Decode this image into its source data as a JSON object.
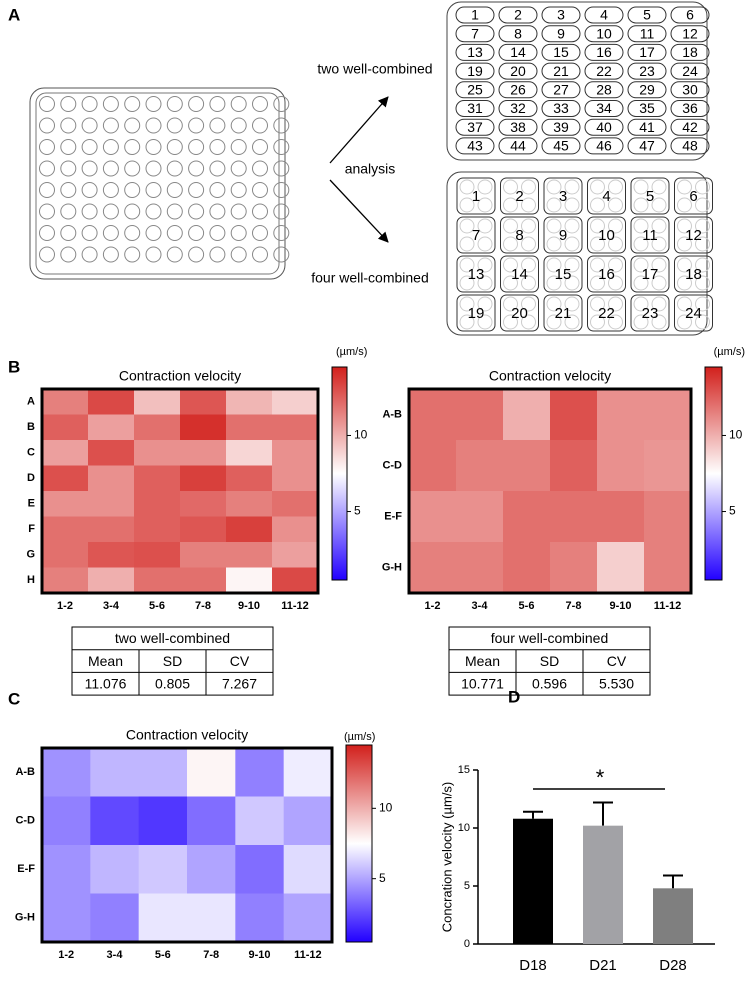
{
  "panel_labels": [
    "A",
    "B",
    "C",
    "D"
  ],
  "diagram": {
    "two_well_label": "two well-combined",
    "analysis_label": "analysis",
    "four_well_label": "four well-combined",
    "two_well_plate": [
      1,
      2,
      3,
      4,
      5,
      6,
      7,
      8,
      9,
      10,
      11,
      12,
      13,
      14,
      15,
      16,
      17,
      18,
      19,
      20,
      21,
      22,
      23,
      24,
      25,
      26,
      27,
      28,
      29,
      30,
      31,
      32,
      33,
      34,
      35,
      36,
      37,
      38,
      39,
      40,
      41,
      42,
      43,
      44,
      45,
      46,
      47,
      48
    ],
    "four_well_plate": [
      1,
      2,
      3,
      4,
      5,
      6,
      7,
      8,
      9,
      10,
      11,
      12,
      13,
      14,
      15,
      16,
      17,
      18,
      19,
      20,
      21,
      22,
      23,
      24
    ]
  },
  "chart_data": [
    {
      "type": "heatmap",
      "title": "Contraction velocity",
      "categories": [
        "1-2",
        "3-4",
        "5-6",
        "7-8",
        "9-10",
        "11-12"
      ],
      "rows": [
        "A",
        "B",
        "C",
        "D",
        "E",
        "F",
        "G",
        "H"
      ],
      "values": [
        [
          11.5,
          13.2,
          9.5,
          12.8,
          9.8,
          9.0
        ],
        [
          12.5,
          10.5,
          12.0,
          14.0,
          12.0,
          12.0
        ],
        [
          10.5,
          13.0,
          11.0,
          11.0,
          8.8,
          11.0
        ],
        [
          13.0,
          11.0,
          12.5,
          13.5,
          12.5,
          11.0
        ],
        [
          11.0,
          11.0,
          12.5,
          12.2,
          11.5,
          12.0
        ],
        [
          12.0,
          12.0,
          12.5,
          12.8,
          13.5,
          11.0
        ],
        [
          12.0,
          12.8,
          13.0,
          11.5,
          11.5,
          10.5
        ],
        [
          11.5,
          10.0,
          12.0,
          12.0,
          7.8,
          13.2
        ]
      ],
      "colorbar": {
        "label": "(µm/s)",
        "lim": [
          0.5,
          14.5
        ],
        "ticks": [
          5,
          10
        ],
        "colors": [
          "#2200ff",
          "#ffffff",
          "#d2201c"
        ]
      }
    },
    {
      "type": "heatmap",
      "title": "Contraction velocity",
      "categories": [
        "1-2",
        "3-4",
        "5-6",
        "7-8",
        "9-10",
        "11-12"
      ],
      "rows": [
        "A-B",
        "C-D",
        "E-F",
        "G-H"
      ],
      "values": [
        [
          12.0,
          12.0,
          10.0,
          13.0,
          11.0,
          11.0
        ],
        [
          12.0,
          11.5,
          11.5,
          12.5,
          11.0,
          10.8
        ],
        [
          11.0,
          11.0,
          12.0,
          12.0,
          12.0,
          11.5
        ],
        [
          11.5,
          11.5,
          12.0,
          11.5,
          9.0,
          11.5
        ]
      ],
      "colorbar": {
        "label": "(µm/s)",
        "lim": [
          0.5,
          14.5
        ],
        "ticks": [
          5,
          10
        ],
        "colors": [
          "#2200ff",
          "#ffffff",
          "#d2201c"
        ]
      }
    },
    {
      "type": "heatmap",
      "title": "Contraction velocity",
      "categories": [
        "1-2",
        "3-4",
        "5-6",
        "7-8",
        "9-10",
        "11-12"
      ],
      "rows": [
        "A-B",
        "C-D",
        "E-F",
        "G-H"
      ],
      "values": [
        [
          4.5,
          5.5,
          5.5,
          7.8,
          4.0,
          7.0
        ],
        [
          4.0,
          2.5,
          2.0,
          3.5,
          6.0,
          5.0
        ],
        [
          4.5,
          5.5,
          6.0,
          5.0,
          3.5,
          6.5
        ],
        [
          4.5,
          4.0,
          6.8,
          6.8,
          4.0,
          5.0
        ]
      ],
      "colorbar": {
        "label": "(µm/s)",
        "lim": [
          0.5,
          14.5
        ],
        "ticks": [
          5,
          10
        ],
        "colors": [
          "#2200ff",
          "#ffffff",
          "#d2201c"
        ]
      }
    },
    {
      "type": "bar",
      "categories": [
        "D18",
        "D21",
        "D28"
      ],
      "values": [
        10.8,
        10.2,
        4.8
      ],
      "errors": [
        0.6,
        2.0,
        1.1
      ],
      "colors": [
        "#000000",
        "#a2a2a6",
        "#7f7f7f"
      ],
      "ylabel": "Concration velocity (µm/s)",
      "ylim": [
        0,
        15
      ],
      "yticks": [
        0,
        5,
        10,
        15
      ],
      "annotation": "*"
    }
  ],
  "tables": [
    {
      "title": "two well-combined",
      "header": [
        "Mean",
        "SD",
        "CV"
      ],
      "row": [
        "11.076",
        "0.805",
        "7.267"
      ]
    },
    {
      "title": "four well-combined",
      "header": [
        "Mean",
        "SD",
        "CV"
      ],
      "row": [
        "10.771",
        "0.596",
        "5.530"
      ]
    }
  ]
}
